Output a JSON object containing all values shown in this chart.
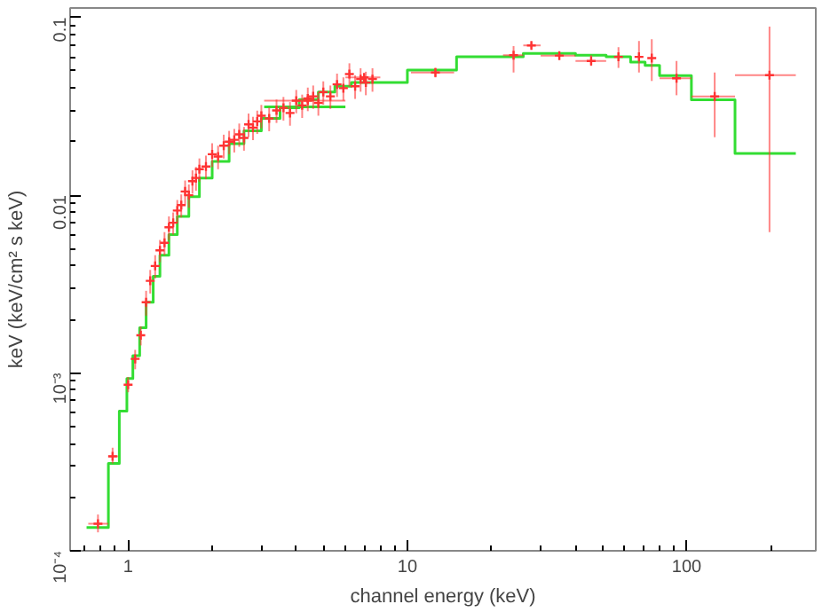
{
  "chart_data": {
    "type": "scatter",
    "xlabel": "channel energy (keV)",
    "ylabel": "keV (keV/cm² s keV)",
    "log": "xy",
    "xlim": [
      0.62,
      290
    ],
    "ylim": [
      0.0001,
      0.113
    ],
    "xticks": [
      1,
      10,
      100
    ],
    "yticks": [
      {
        "value": 0.0001,
        "label": "10⁻⁴"
      },
      {
        "value": 0.001,
        "label": "10⁻³"
      },
      0.01,
      0.1
    ],
    "series": [
      {
        "type": "step",
        "color": "#33dd33",
        "x": [
          0.71,
          0.85,
          0.93,
          0.99,
          1.04,
          1.1,
          1.16,
          1.23,
          1.3,
          1.4,
          1.5,
          1.65,
          1.8,
          2.0,
          2.3,
          2.6,
          3.0,
          3.5,
          4.1,
          4.8,
          5.5,
          6.3,
          10,
          15,
          26,
          40,
          51.5,
          63,
          71,
          80,
          104,
          149,
          246
        ],
        "values": [
          0.000135,
          0.00031,
          0.00061,
          0.00093,
          0.00125,
          0.0018,
          0.0025,
          0.0035,
          0.0046,
          0.006,
          0.0076,
          0.0098,
          0.0125,
          0.0155,
          0.0195,
          0.023,
          0.027,
          0.031,
          0.0345,
          0.038,
          0.041,
          0.043,
          0.0505,
          0.06,
          0.0627,
          0.0613,
          0.06,
          0.056,
          0.0537,
          0.047,
          0.0344,
          0.0172,
          0.0172
        ]
      },
      {
        "type": "step",
        "color": "#33dd33",
        "x": [
          3.07,
          6.0
        ],
        "values": [
          0.0314,
          0.0314
        ]
      },
      {
        "marker": "cross",
        "color": "#ff3333",
        "x": [
          0.78,
          0.88,
          1.0,
          1.06,
          1.11,
          1.16,
          1.2,
          1.25,
          1.3,
          1.35,
          1.4,
          1.45,
          1.5,
          1.55,
          1.6,
          1.65,
          1.7,
          1.75,
          1.8,
          1.9,
          2.0,
          2.1,
          2.2,
          2.3,
          2.4,
          2.5,
          2.6,
          2.7,
          2.8,
          2.9,
          3.0,
          3.2,
          3.4,
          3.6,
          3.8,
          4.0,
          4.2,
          4.4,
          4.6,
          4.8,
          5.0,
          5.3,
          5.6,
          5.9,
          6.2,
          6.5,
          6.8,
          7.1,
          7.5,
          4.4,
          7.0,
          12.6,
          24,
          27.8,
          35,
          45.5,
          57,
          67.5,
          75,
          92,
          126,
          198
        ],
        "values": [
          0.000142,
          0.00034,
          0.00086,
          0.0012,
          0.00163,
          0.0025,
          0.0033,
          0.004,
          0.0049,
          0.0054,
          0.0066,
          0.007,
          0.0082,
          0.0088,
          0.0105,
          0.01,
          0.012,
          0.0125,
          0.014,
          0.0145,
          0.017,
          0.0165,
          0.019,
          0.02,
          0.0205,
          0.022,
          0.021,
          0.025,
          0.024,
          0.026,
          0.028,
          0.027,
          0.03,
          0.031,
          0.029,
          0.034,
          0.032,
          0.035,
          0.036,
          0.033,
          0.038,
          0.036,
          0.042,
          0.04,
          0.048,
          0.041,
          0.045,
          0.043,
          0.045,
          0.034,
          0.046,
          0.049,
          0.0613,
          0.0696,
          0.061,
          0.0569,
          0.06,
          0.06,
          0.059,
          0.0455,
          0.0359,
          0.0473
        ],
        "errors": [
          [
            0.000127,
            0.00016
          ],
          [
            0.00031,
            0.00038
          ],
          [
            0.00078,
            0.00095
          ],
          0.00015,
          0.0002,
          0.0004,
          0.0005,
          0.0006,
          0.0007,
          0.0008,
          0.001,
          0.001,
          0.0012,
          0.0013,
          0.0016,
          0.0015,
          0.0018,
          0.0019,
          0.0021,
          0.0022,
          0.0026,
          0.0025,
          0.0029,
          0.003,
          0.0031,
          0.0033,
          0.0032,
          0.0038,
          0.0036,
          0.0039,
          0.0042,
          0.0041,
          0.0045,
          0.0047,
          0.0044,
          0.0051,
          0.0048,
          0.0053,
          0.0054,
          0.005,
          0.0057,
          0.0054,
          0.0063,
          0.006,
          0.0072,
          0.0062,
          0.0068,
          0.0065,
          0.0068,
          0.001,
          0.0015,
          [
            0.046,
            0.052
          ],
          [
            0.049,
            0.069
          ],
          [
            0.067,
            0.072
          ],
          [
            0.059,
            0.063
          ],
          [
            0.0534,
            0.0613
          ],
          [
            0.052,
            0.068
          ],
          [
            0.049,
            0.0737
          ],
          [
            0.0439,
            0.0754
          ],
          [
            0.0365,
            0.0569
          ],
          [
            0.0212,
            0.049
          ],
          [
            0.0062,
            0.0888
          ]
        ],
        "xerrors": [
          [
            0.72,
            0.85
          ],
          [
            0.85,
            0.92
          ],
          null,
          null,
          null,
          null,
          null,
          null,
          null,
          null,
          null,
          null,
          null,
          null,
          null,
          null,
          null,
          null,
          null,
          null,
          null,
          null,
          null,
          null,
          null,
          null,
          null,
          null,
          null,
          null,
          null,
          null,
          null,
          null,
          null,
          null,
          null,
          null,
          null,
          null,
          null,
          null,
          null,
          null,
          null,
          null,
          null,
          null,
          null,
          [
            3.07,
            6.0
          ],
          [
            6.0,
            8.0
          ],
          [
            10.3,
            14.7
          ],
          [
            22,
            26
          ],
          [
            26,
            30
          ],
          [
            30,
            40
          ],
          [
            40,
            51.5
          ],
          null,
          null,
          null,
          [
            80,
            104
          ],
          [
            104,
            149
          ],
          [
            149,
            246
          ]
        ]
      }
    ]
  }
}
